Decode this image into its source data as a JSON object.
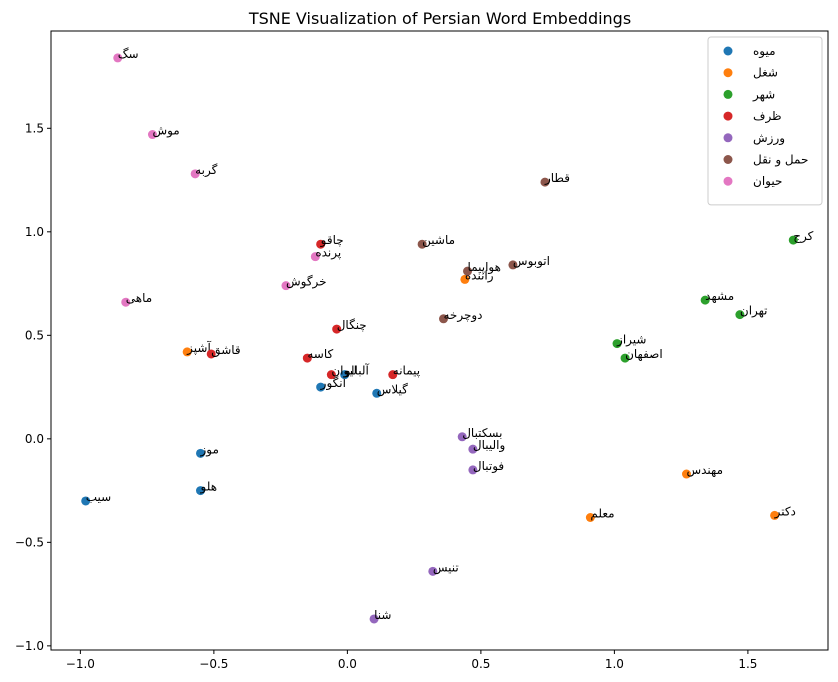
{
  "chart_data": {
    "type": "scatter",
    "title": "TSNE Visualization of Persian Word Embeddings",
    "xlabel": "",
    "ylabel": "",
    "xlim": [
      -1.11,
      1.8
    ],
    "ylim": [
      -1.02,
      1.97
    ],
    "xticks": [
      -1.0,
      -0.5,
      0.0,
      0.5,
      1.0,
      1.5
    ],
    "xtick_labels": [
      "−1.0",
      "−0.5",
      "0.0",
      "0.5",
      "1.0",
      "1.5"
    ],
    "yticks": [
      -1.0,
      -0.5,
      0.0,
      0.5,
      1.0,
      1.5
    ],
    "ytick_labels": [
      "−1.0",
      "−0.5",
      "0.0",
      "0.5",
      "1.0",
      "1.5"
    ],
    "grid": false,
    "legend_position": "top-right",
    "series": [
      {
        "name": "میوه",
        "color": "#1f77b4",
        "points": [
          {
            "label": "سیب",
            "x": -0.98,
            "y": -0.3
          },
          {
            "label": "هلو",
            "x": -0.55,
            "y": -0.25
          },
          {
            "label": "موز",
            "x": -0.55,
            "y": -0.07
          },
          {
            "label": "انگور",
            "x": -0.1,
            "y": 0.25
          },
          {
            "label": "آلبالو",
            "x": -0.01,
            "y": 0.31
          },
          {
            "label": "گیلاس",
            "x": 0.11,
            "y": 0.22
          }
        ]
      },
      {
        "name": "شغل",
        "color": "#ff7f0e",
        "points": [
          {
            "label": "آشپز",
            "x": -0.6,
            "y": 0.42
          },
          {
            "label": "راننده",
            "x": 0.44,
            "y": 0.77
          },
          {
            "label": "مهندس",
            "x": 1.27,
            "y": -0.17
          },
          {
            "label": "معلم",
            "x": 0.91,
            "y": -0.38
          },
          {
            "label": "دکتر",
            "x": 1.6,
            "y": -0.37
          }
        ]
      },
      {
        "name": "شهر",
        "color": "#2ca02c",
        "points": [
          {
            "label": "کرج",
            "x": 1.67,
            "y": 0.96
          },
          {
            "label": "مشهد",
            "x": 1.34,
            "y": 0.67
          },
          {
            "label": "تهران",
            "x": 1.47,
            "y": 0.6
          },
          {
            "label": "شیراز",
            "x": 1.01,
            "y": 0.46
          },
          {
            "label": "اصفهان",
            "x": 1.04,
            "y": 0.39
          }
        ]
      },
      {
        "name": "ظرف",
        "color": "#d62728",
        "points": [
          {
            "label": "چاقو",
            "x": -0.1,
            "y": 0.94
          },
          {
            "label": "چنگال",
            "x": -0.04,
            "y": 0.53
          },
          {
            "label": "قاشق",
            "x": -0.51,
            "y": 0.41
          },
          {
            "label": "کاسه",
            "x": -0.15,
            "y": 0.39
          },
          {
            "label": "لیوان",
            "x": -0.06,
            "y": 0.31
          },
          {
            "label": "پیمانه",
            "x": 0.17,
            "y": 0.31
          }
        ]
      },
      {
        "name": "ورزش",
        "color": "#9467bd",
        "points": [
          {
            "label": "بسکتبال",
            "x": 0.43,
            "y": 0.01
          },
          {
            "label": "والیبال",
            "x": 0.47,
            "y": -0.05
          },
          {
            "label": "فوتبال",
            "x": 0.47,
            "y": -0.15
          },
          {
            "label": "تنیس",
            "x": 0.32,
            "y": -0.64
          },
          {
            "label": "شنا",
            "x": 0.1,
            "y": -0.87
          }
        ]
      },
      {
        "name": "حمل و نقل",
        "color": "#8c564b",
        "points": [
          {
            "label": "قطار",
            "x": 0.74,
            "y": 1.24
          },
          {
            "label": "ماشین",
            "x": 0.28,
            "y": 0.94
          },
          {
            "label": "هواپیما",
            "x": 0.45,
            "y": 0.81
          },
          {
            "label": "اتوبوس",
            "x": 0.62,
            "y": 0.84
          },
          {
            "label": "دوچرخه",
            "x": 0.36,
            "y": 0.58
          }
        ]
      },
      {
        "name": "حیوان",
        "color": "#e377c2",
        "points": [
          {
            "label": "سگ",
            "x": -0.86,
            "y": 1.84
          },
          {
            "label": "موش",
            "x": -0.73,
            "y": 1.47
          },
          {
            "label": "گربه",
            "x": -0.57,
            "y": 1.28
          },
          {
            "label": "پرنده",
            "x": -0.12,
            "y": 0.88
          },
          {
            "label": "خرگوش",
            "x": -0.23,
            "y": 0.74
          },
          {
            "label": "ماهی",
            "x": -0.83,
            "y": 0.66
          }
        ]
      }
    ]
  }
}
